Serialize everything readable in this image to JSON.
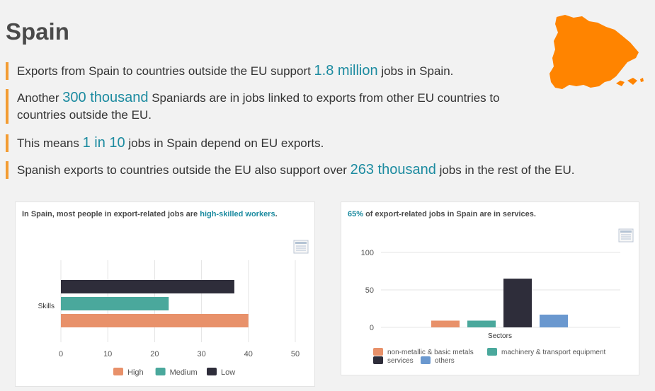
{
  "header": {
    "title": "Spain"
  },
  "facts": [
    {
      "pre": "Exports from Spain to countries outside the EU support ",
      "value": "1.8 million",
      "post": " jobs in Spain."
    },
    {
      "pre": "Another ",
      "value": "300 thousand",
      "post": " Spaniards are in jobs linked to exports from other EU countries to countries outside the EU."
    },
    {
      "pre": "This means ",
      "value": "1 in 10",
      "post": " jobs in Spain depend on EU exports."
    },
    {
      "pre": "Spanish exports to countries outside the EU also support over ",
      "value": "263 thousand",
      "post": " jobs in the rest of the EU."
    }
  ],
  "colors": {
    "accent": "#1c8ba0",
    "bullet_bar": "#f39c33",
    "map": "#ff8400"
  },
  "chart1_title": {
    "pre": "In Spain, most people in export-related jobs are ",
    "accent": "high-skilled workers",
    "post": "."
  },
  "chart2_title": {
    "accent": "65%",
    "post": " of export-related jobs in Spain are in services."
  },
  "chart_data": [
    {
      "type": "bar",
      "orientation": "horizontal",
      "categories": [
        "Skills"
      ],
      "series": [
        {
          "name": "High",
          "values": [
            40
          ],
          "color": "#e8916a"
        },
        {
          "name": "Medium",
          "values": [
            23
          ],
          "color": "#4aa89c"
        },
        {
          "name": "Low",
          "values": [
            37
          ],
          "color": "#2e2d3a"
        }
      ],
      "xlim": [
        0,
        50
      ],
      "xticks": [
        0,
        10,
        20,
        30,
        40,
        50
      ],
      "grid": true,
      "legend": "bottom"
    },
    {
      "type": "bar",
      "categories": [
        "Sectors"
      ],
      "series": [
        {
          "name": "non-metallic & basic metals",
          "values": [
            9
          ],
          "color": "#e8916a"
        },
        {
          "name": "machinery & transport equipment",
          "values": [
            9
          ],
          "color": "#4aa89c"
        },
        {
          "name": "services",
          "values": [
            65
          ],
          "color": "#2e2d3a"
        },
        {
          "name": "others",
          "values": [
            17
          ],
          "color": "#6a98cf"
        }
      ],
      "ylim": [
        0,
        100
      ],
      "yticks": [
        0,
        50,
        100
      ],
      "grid": true,
      "legend": "bottom"
    }
  ]
}
